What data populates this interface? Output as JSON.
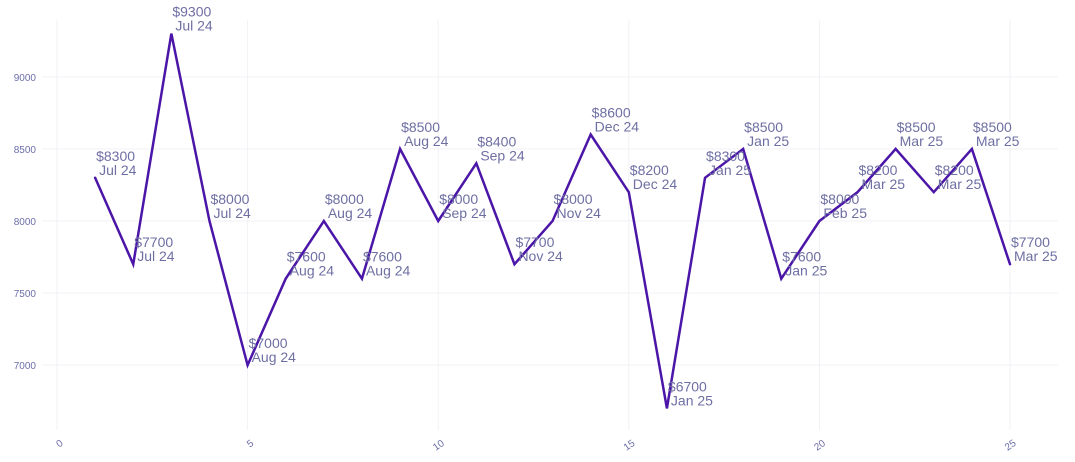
{
  "chart_data": {
    "type": "line",
    "title": "",
    "xlabel": "",
    "ylabel": "",
    "xlim": [
      -0.2,
      26.2
    ],
    "ylim": [
      6550,
      9450
    ],
    "x_ticks": [
      "0",
      "5",
      "10",
      "15",
      "20",
      "25"
    ],
    "y_ticks": [
      "7000",
      "7500",
      "8000",
      "8500",
      "9000"
    ],
    "grid": true,
    "legend": "none",
    "colors": {
      "line": "#4b16a8",
      "tick_text": "#6b6fa8",
      "label_text": "#6e6fa3",
      "grid": "#f2f2f6"
    },
    "series": [
      {
        "x": [
          1,
          2,
          3,
          4,
          5,
          6,
          7,
          8,
          9,
          10,
          11,
          12,
          13,
          14,
          15,
          16,
          17,
          18,
          19,
          20,
          21,
          22,
          23,
          24,
          25
        ],
        "values": [
          8300,
          7700,
          9300,
          8000,
          7000,
          7600,
          8000,
          7600,
          8500,
          8000,
          8400,
          7700,
          8000,
          8600,
          8200,
          6700,
          8300,
          8500,
          7600,
          8000,
          8200,
          8500,
          8200,
          8500,
          7700
        ],
        "labels": [
          [
            "$8300",
            "Jul 24"
          ],
          [
            "$7700",
            "Jul 24"
          ],
          [
            "$9300",
            "Jul 24"
          ],
          [
            "$8000",
            "Jul 24"
          ],
          [
            "$7000",
            "Aug 24"
          ],
          [
            "$7600",
            "Aug 24"
          ],
          [
            "$8000",
            "Aug 24"
          ],
          [
            "$7600",
            "Aug 24"
          ],
          [
            "$8500",
            "Aug 24"
          ],
          [
            "$8000",
            "Sep 24"
          ],
          [
            "$8400",
            "Sep 24"
          ],
          [
            "$7700",
            "Nov 24"
          ],
          [
            "$8000",
            "Nov 24"
          ],
          [
            "$8600",
            "Dec 24"
          ],
          [
            "$8200",
            "Dec 24"
          ],
          [
            "$6700",
            "Jan 25"
          ],
          [
            "$8300",
            "Jan 25"
          ],
          [
            "$8500",
            "Jan 25"
          ],
          [
            "$7600",
            "Jan 25"
          ],
          [
            "$8000",
            "Feb 25"
          ],
          [
            "$8200",
            "Mar 25"
          ],
          [
            "$8500",
            "Mar 25"
          ],
          [
            "$8200",
            "Mar 25"
          ],
          [
            "$8500",
            "Mar 25"
          ],
          [
            "$7700",
            "Mar 25"
          ]
        ]
      }
    ]
  }
}
